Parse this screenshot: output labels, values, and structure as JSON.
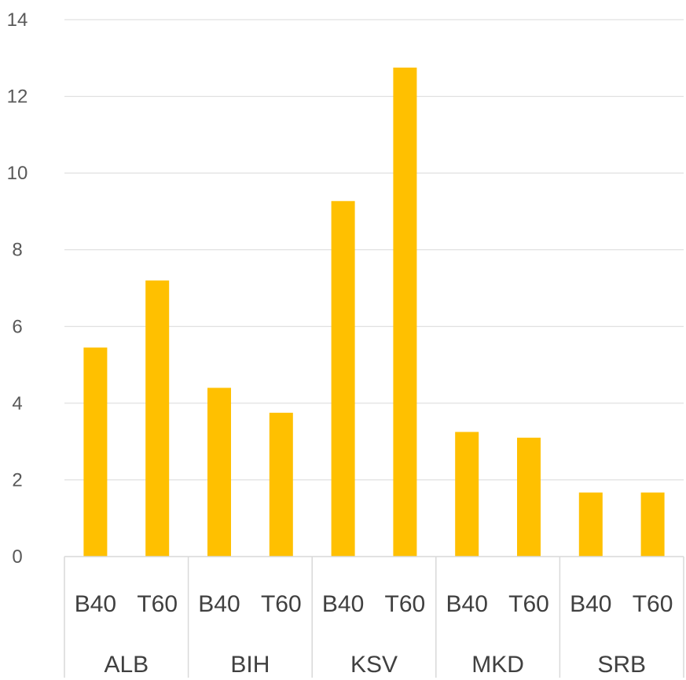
{
  "chart_data": {
    "type": "bar",
    "title": "",
    "xlabel": "",
    "ylabel": "",
    "ylim": [
      0,
      14
    ],
    "yticks": [
      0,
      2,
      4,
      6,
      8,
      10,
      12,
      14
    ],
    "grid": true,
    "legend": "none",
    "groups": [
      {
        "label": "ALB",
        "items": [
          {
            "label": "B40",
            "value": 5.45
          },
          {
            "label": "T60",
            "value": 7.2
          }
        ]
      },
      {
        "label": "BIH",
        "items": [
          {
            "label": "B40",
            "value": 4.4
          },
          {
            "label": "T60",
            "value": 3.75
          }
        ]
      },
      {
        "label": "KSV",
        "items": [
          {
            "label": "B40",
            "value": 9.27
          },
          {
            "label": "T60",
            "value": 12.75
          }
        ]
      },
      {
        "label": "MKD",
        "items": [
          {
            "label": "B40",
            "value": 3.25
          },
          {
            "label": "T60",
            "value": 3.1
          }
        ]
      },
      {
        "label": "SRB",
        "items": [
          {
            "label": "B40",
            "value": 1.67
          },
          {
            "label": "T60",
            "value": 1.67
          }
        ]
      }
    ],
    "colors": {
      "bar": "#FFC000",
      "grid": "#D9D9D9",
      "tick_text": "#595959",
      "category_text": "#404040"
    }
  }
}
